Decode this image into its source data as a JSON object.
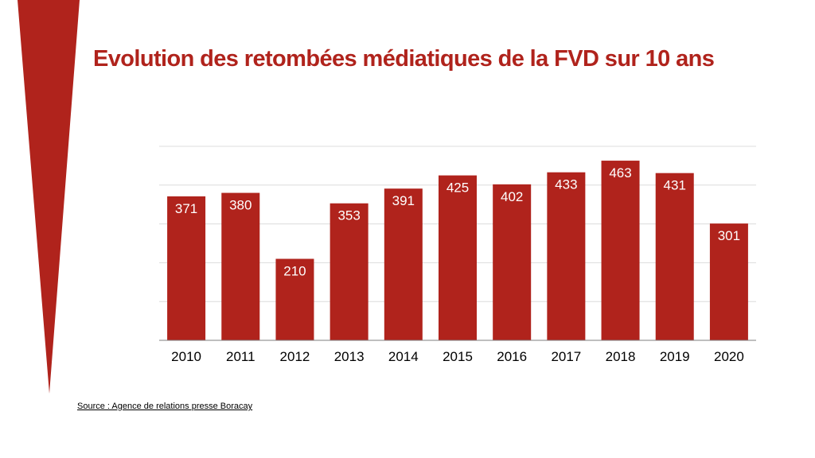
{
  "title": "Evolution des retombées médiatiques de la FVD sur 10 ans",
  "source": "Source : Agence de relations presse Boracay",
  "colors": {
    "accent": "#B0231C",
    "grid": "#dcdcdc",
    "axis": "#7f7f7f"
  },
  "chart_data": {
    "type": "bar",
    "title": "Evolution des retombées médiatiques de la FVD sur 10 ans",
    "xlabel": "",
    "ylabel": "",
    "categories": [
      "2010",
      "2011",
      "2012",
      "2013",
      "2014",
      "2015",
      "2016",
      "2017",
      "2018",
      "2019",
      "2020"
    ],
    "values": [
      371,
      380,
      210,
      353,
      391,
      425,
      402,
      433,
      463,
      431,
      301
    ],
    "ylim": [
      0,
      500
    ],
    "grid": true,
    "legend": "none",
    "data_labels": "inside-top"
  }
}
